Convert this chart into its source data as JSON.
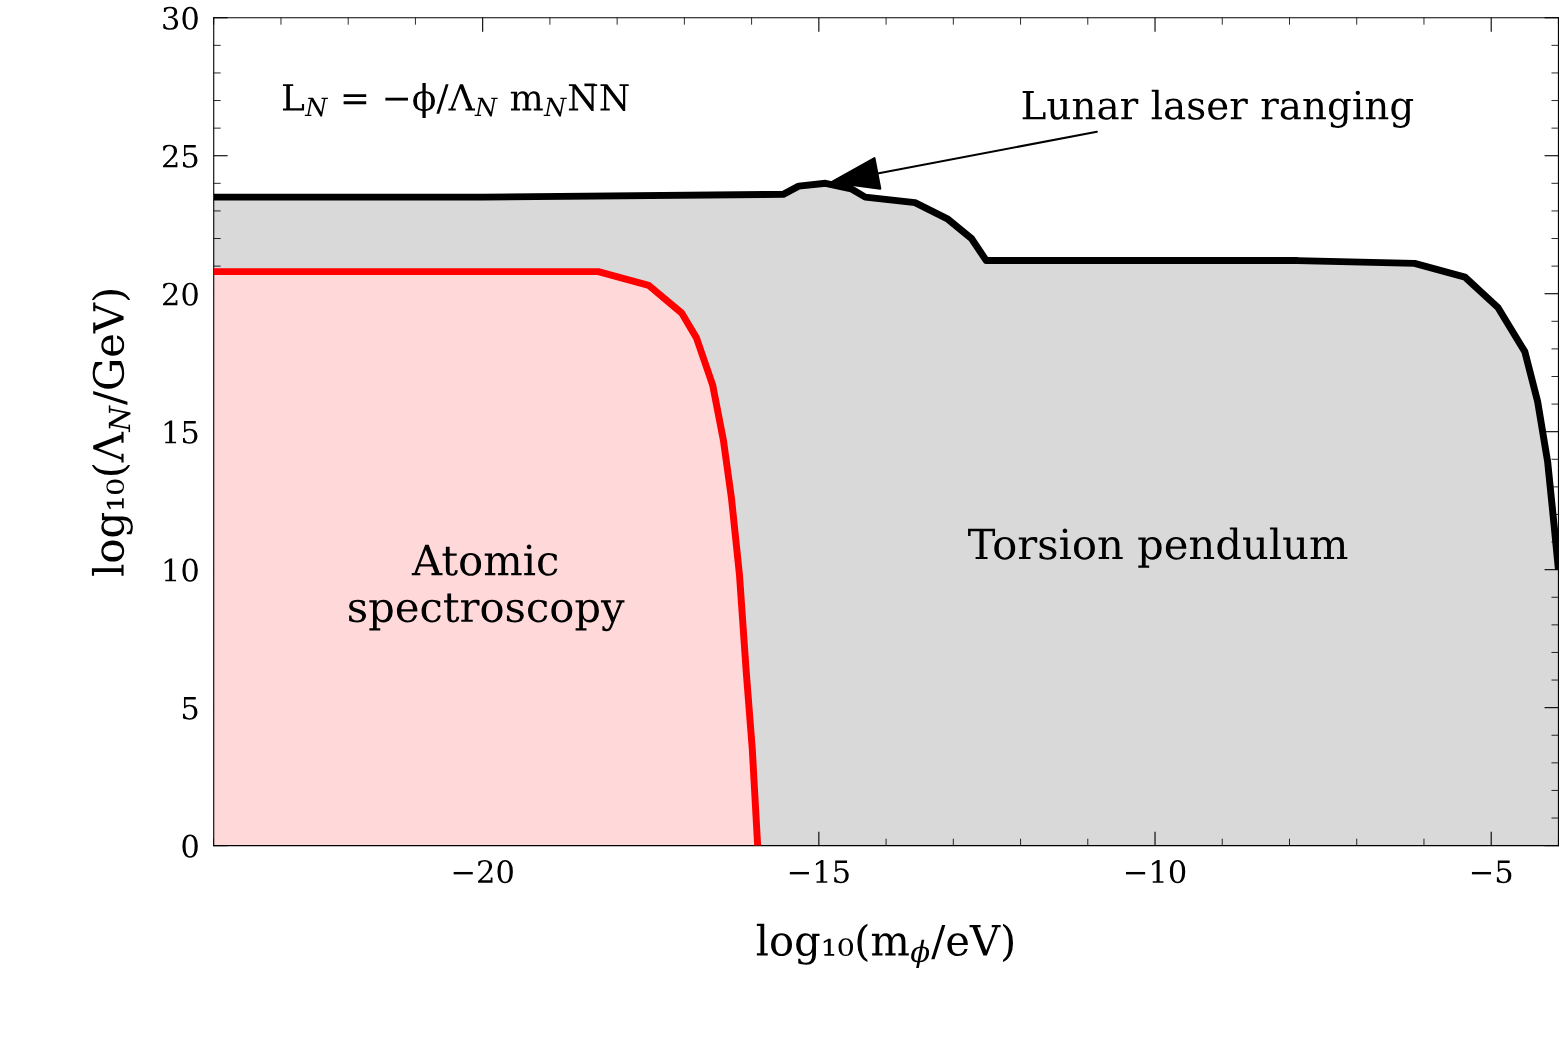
{
  "chart_data": {
    "type": "area",
    "xlabel": "log₁₀(m$_{ϕ}$/eV)",
    "ylabel": "log₁₀(Λ$_{N}$/GeV)",
    "xlim": [
      -24,
      -4
    ],
    "ylim": [
      0,
      30
    ],
    "xticks": [
      -20,
      -15,
      -10,
      -5
    ],
    "yticks": [
      0,
      5,
      10,
      15,
      20,
      25,
      30
    ],
    "grid": false,
    "legend": false,
    "series": [
      {
        "name": "Torsion pendulum",
        "color": "#000000",
        "x": [
          -24,
          -20,
          -15.53,
          -15.3,
          -14.9,
          -14.52,
          -14.31,
          -13.57,
          -13.08,
          -12.73,
          -12.51,
          -10,
          -7.88,
          -6.14,
          -5.39,
          -4.9,
          -4.5,
          -4.31,
          -4.16,
          -4.06,
          -4.0
        ],
        "values": [
          23.5,
          23.5,
          23.6,
          23.9,
          24.0,
          23.8,
          23.5,
          23.3,
          22.7,
          22.0,
          21.2,
          21.2,
          21.2,
          21.1,
          20.6,
          19.5,
          17.9,
          16.1,
          13.9,
          11.5,
          10.0
        ]
      },
      {
        "name": "Atomic\nspectroscopy",
        "color": "#ff0000",
        "x": [
          -24,
          -20,
          -18.28,
          -17.53,
          -17.04,
          -16.82,
          -16.58,
          -16.42,
          -16.3,
          -16.18,
          -16.08,
          -15.99,
          -15.91
        ],
        "values": [
          20.8,
          20.8,
          20.8,
          20.3,
          19.3,
          18.4,
          16.7,
          14.7,
          12.6,
          9.8,
          6.3,
          3.5,
          0
        ]
      }
    ],
    "annotations": [
      "L$_{N}$ = −ϕ/Λ$_{N}$ m$_{N}$N̄N",
      {
        "text": "Lunar laser ranging",
        "x": -14.9,
        "y": 24.0
      }
    ]
  }
}
